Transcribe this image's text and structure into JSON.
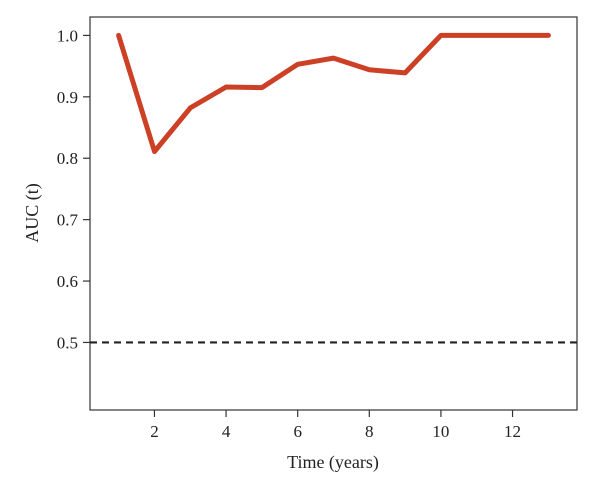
{
  "chart_data": {
    "type": "line",
    "title": "",
    "xlabel": "Time (years)",
    "ylabel": "AUC (t)",
    "xlim": [
      0.2,
      13.8
    ],
    "ylim": [
      0.39,
      1.03
    ],
    "xticks": [
      2,
      4,
      6,
      8,
      10,
      12
    ],
    "yticks": [
      0.5,
      0.6,
      0.7,
      0.8,
      0.9,
      1.0
    ],
    "xtick_labels": [
      "2",
      "4",
      "6",
      "8",
      "10",
      "12"
    ],
    "ytick_labels": [
      "0.5",
      "0.6",
      "0.7",
      "0.8",
      "0.9",
      "1.0"
    ],
    "grid": false,
    "legend": "none",
    "series": [
      {
        "color": "#cc4125",
        "style": "solid",
        "x": [
          1,
          2,
          3,
          4,
          5,
          6,
          7,
          8,
          9,
          10,
          11,
          12,
          13
        ],
        "y": [
          1.0,
          0.811,
          0.882,
          0.916,
          0.915,
          0.953,
          0.963,
          0.944,
          0.939,
          1.0,
          1.0,
          1.0,
          1.0
        ]
      }
    ],
    "reference_lines": [
      {
        "y": 0.5,
        "color": "#222222",
        "style": "dashed"
      }
    ]
  }
}
